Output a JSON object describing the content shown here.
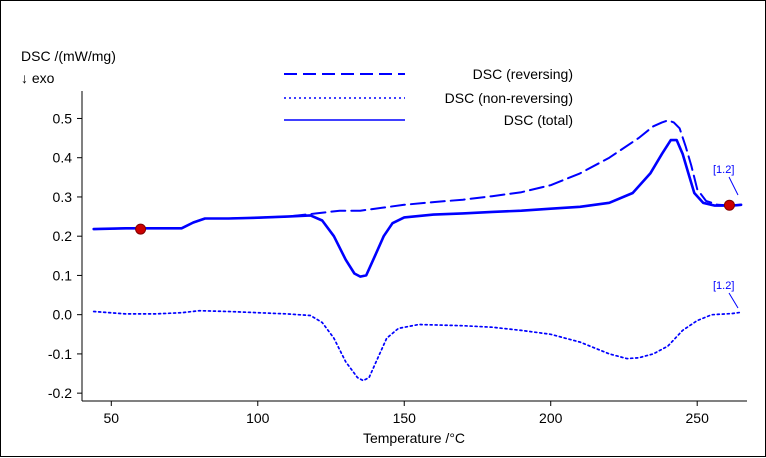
{
  "chart_data": {
    "type": "line",
    "ylabel": "DSC /(mW/mg)",
    "ylabel_sub": "↓ exo",
    "xlabel": "Temperature /°C",
    "xlim": [
      40,
      267
    ],
    "ylim": [
      -0.22,
      0.57
    ],
    "xticks": [
      50,
      100,
      150,
      200,
      250
    ],
    "yticks": [
      0.5,
      0.4,
      0.3,
      0.2,
      0.1,
      0.0,
      -0.1,
      -0.2
    ],
    "ytick_labels": [
      "0.5",
      "0.4",
      "0.3",
      "0.2",
      "0.1",
      "0.0",
      "-0.1",
      "-0.2"
    ],
    "legend_position": "top-center",
    "series_color": "#0000ff",
    "marker_color": "#cc0000",
    "series": [
      {
        "name": "DSC (reversing)",
        "style": "dashed",
        "points": [
          [
            44,
            0.218
          ],
          [
            55,
            0.22
          ],
          [
            65,
            0.22
          ],
          [
            74,
            0.22
          ],
          [
            78,
            0.235
          ],
          [
            82,
            0.245
          ],
          [
            90,
            0.245
          ],
          [
            100,
            0.247
          ],
          [
            110,
            0.25
          ],
          [
            120,
            0.258
          ],
          [
            128,
            0.265
          ],
          [
            135,
            0.265
          ],
          [
            140,
            0.27
          ],
          [
            150,
            0.28
          ],
          [
            160,
            0.287
          ],
          [
            170,
            0.293
          ],
          [
            180,
            0.302
          ],
          [
            190,
            0.312
          ],
          [
            200,
            0.33
          ],
          [
            210,
            0.36
          ],
          [
            220,
            0.4
          ],
          [
            230,
            0.45
          ],
          [
            235,
            0.48
          ],
          [
            238,
            0.49
          ],
          [
            240,
            0.495
          ],
          [
            242,
            0.49
          ],
          [
            244,
            0.475
          ],
          [
            246,
            0.43
          ],
          [
            248,
            0.38
          ],
          [
            250,
            0.32
          ],
          [
            253,
            0.29
          ],
          [
            257,
            0.28
          ],
          [
            262,
            0.278
          ],
          [
            265,
            0.28
          ]
        ]
      },
      {
        "name": "DSC (non-reversing)",
        "style": "dotted",
        "points": [
          [
            44,
            0.008
          ],
          [
            55,
            0.002
          ],
          [
            65,
            0.002
          ],
          [
            74,
            0.005
          ],
          [
            80,
            0.01
          ],
          [
            90,
            0.008
          ],
          [
            100,
            0.005
          ],
          [
            110,
            0.002
          ],
          [
            118,
            -0.002
          ],
          [
            122,
            -0.02
          ],
          [
            126,
            -0.06
          ],
          [
            130,
            -0.12
          ],
          [
            134,
            -0.16
          ],
          [
            136,
            -0.168
          ],
          [
            138,
            -0.16
          ],
          [
            141,
            -0.11
          ],
          [
            144,
            -0.06
          ],
          [
            148,
            -0.035
          ],
          [
            155,
            -0.025
          ],
          [
            170,
            -0.028
          ],
          [
            180,
            -0.032
          ],
          [
            190,
            -0.04
          ],
          [
            200,
            -0.05
          ],
          [
            210,
            -0.07
          ],
          [
            220,
            -0.1
          ],
          [
            226,
            -0.112
          ],
          [
            230,
            -0.11
          ],
          [
            235,
            -0.1
          ],
          [
            240,
            -0.08
          ],
          [
            245,
            -0.04
          ],
          [
            250,
            -0.015
          ],
          [
            255,
            0.0
          ],
          [
            262,
            0.003
          ],
          [
            265,
            0.006
          ]
        ]
      },
      {
        "name": "DSC (total)",
        "style": "solid",
        "points": [
          [
            44,
            0.218
          ],
          [
            55,
            0.22
          ],
          [
            65,
            0.22
          ],
          [
            74,
            0.22
          ],
          [
            78,
            0.235
          ],
          [
            82,
            0.245
          ],
          [
            90,
            0.245
          ],
          [
            100,
            0.247
          ],
          [
            110,
            0.25
          ],
          [
            118,
            0.253
          ],
          [
            122,
            0.24
          ],
          [
            126,
            0.2
          ],
          [
            130,
            0.14
          ],
          [
            133,
            0.105
          ],
          [
            135,
            0.097
          ],
          [
            137,
            0.1
          ],
          [
            140,
            0.15
          ],
          [
            143,
            0.2
          ],
          [
            146,
            0.233
          ],
          [
            150,
            0.248
          ],
          [
            160,
            0.255
          ],
          [
            170,
            0.258
          ],
          [
            180,
            0.262
          ],
          [
            190,
            0.265
          ],
          [
            200,
            0.27
          ],
          [
            210,
            0.275
          ],
          [
            220,
            0.285
          ],
          [
            228,
            0.31
          ],
          [
            234,
            0.36
          ],
          [
            238,
            0.41
          ],
          [
            241,
            0.445
          ],
          [
            243,
            0.445
          ],
          [
            245,
            0.41
          ],
          [
            247,
            0.36
          ],
          [
            249,
            0.31
          ],
          [
            252,
            0.285
          ],
          [
            256,
            0.278
          ],
          [
            262,
            0.278
          ],
          [
            265,
            0.28
          ]
        ]
      }
    ],
    "markers": [
      [
        60,
        0.218
      ],
      [
        261,
        0.279
      ]
    ],
    "annotations": [
      "[1.2]",
      "[1.2]"
    ]
  }
}
